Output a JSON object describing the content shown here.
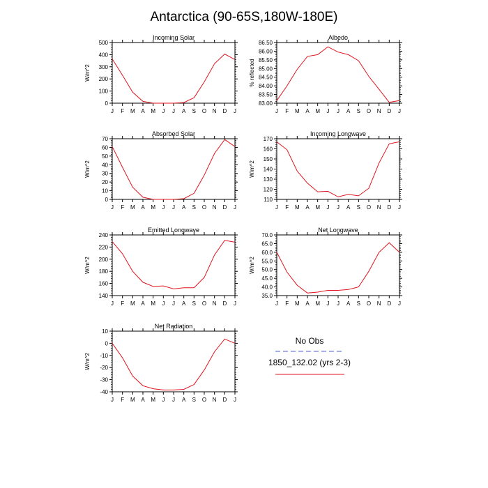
{
  "figure": {
    "title": "Antarctica (90-65S,180W-180E)"
  },
  "legend": {
    "entries": [
      {
        "label": "No Obs",
        "color": "#4a5fd6",
        "dashed": true
      },
      {
        "label": "1850_132.02 (yrs 2-3)",
        "color": "#e0141e",
        "dashed": false
      }
    ]
  },
  "chart_data": [
    {
      "type": "line",
      "title": "Incoming Solar",
      "xlabel": "",
      "ylabel": "W/m^2",
      "categories": [
        "J",
        "F",
        "M",
        "A",
        "M",
        "J",
        "J",
        "A",
        "S",
        "O",
        "N",
        "D",
        "J"
      ],
      "ylim": [
        0,
        500
      ],
      "yticks": [
        0,
        100,
        200,
        300,
        400,
        500
      ],
      "ytick_labels": [
        "0",
        "100",
        "200",
        "300",
        "400",
        "500"
      ],
      "series": [
        {
          "color": "#e0141e",
          "values": [
            365,
            230,
            90,
            15,
            0,
            0,
            0,
            5,
            45,
            175,
            325,
            405,
            360
          ]
        }
      ]
    },
    {
      "type": "line",
      "title": "Albedo",
      "xlabel": "",
      "ylabel": "% reflected",
      "categories": [
        "J",
        "F",
        "M",
        "A",
        "M",
        "J",
        "J",
        "A",
        "S",
        "O",
        "N",
        "D",
        "J"
      ],
      "ylim": [
        83.0,
        86.5
      ],
      "yticks": [
        83.0,
        83.5,
        84.0,
        84.5,
        85.0,
        85.5,
        86.0,
        86.5
      ],
      "ytick_labels": [
        "83.00",
        "83.50",
        "84.00",
        "84.50",
        "85.00",
        "85.50",
        "86.00",
        "86.50"
      ],
      "series": [
        {
          "color": "#e0141e",
          "values": [
            83.15,
            84.0,
            84.95,
            85.7,
            85.8,
            86.25,
            85.95,
            85.8,
            85.45,
            84.55,
            83.8,
            83.05,
            83.15
          ]
        }
      ]
    },
    {
      "type": "line",
      "title": "Absorbed Solar",
      "xlabel": "",
      "ylabel": "W/m^2",
      "categories": [
        "J",
        "F",
        "M",
        "A",
        "M",
        "J",
        "J",
        "A",
        "S",
        "O",
        "N",
        "D",
        "J"
      ],
      "ylim": [
        0,
        70
      ],
      "yticks": [
        0,
        10,
        20,
        30,
        40,
        50,
        60,
        70
      ],
      "ytick_labels": [
        "0",
        "10",
        "20",
        "30",
        "40",
        "50",
        "60",
        "70"
      ],
      "series": [
        {
          "color": "#e0141e",
          "values": [
            61,
            37,
            14,
            2.5,
            0,
            0,
            0,
            0.8,
            7,
            28,
            53,
            69,
            61
          ]
        }
      ]
    },
    {
      "type": "line",
      "title": "Incoming Longwave",
      "xlabel": "",
      "ylabel": "W/m^2",
      "categories": [
        "J",
        "F",
        "M",
        "A",
        "M",
        "J",
        "J",
        "A",
        "S",
        "O",
        "N",
        "D",
        "J"
      ],
      "ylim": [
        110,
        170
      ],
      "yticks": [
        110,
        120,
        130,
        140,
        150,
        160,
        170
      ],
      "ytick_labels": [
        "110",
        "120",
        "130",
        "140",
        "150",
        "160",
        "170"
      ],
      "series": [
        {
          "color": "#e0141e",
          "values": [
            167,
            159,
            138,
            126,
            117.5,
            118,
            112.5,
            115,
            113.5,
            121,
            146,
            165,
            167
          ]
        }
      ]
    },
    {
      "type": "line",
      "title": "Emitted Longwave",
      "xlabel": "",
      "ylabel": "W/m^2",
      "categories": [
        "J",
        "F",
        "M",
        "A",
        "M",
        "J",
        "J",
        "A",
        "S",
        "O",
        "N",
        "D",
        "J"
      ],
      "ylim": [
        140,
        240
      ],
      "yticks": [
        140,
        160,
        180,
        200,
        220,
        240
      ],
      "ytick_labels": [
        "140",
        "160",
        "180",
        "200",
        "220",
        "240"
      ],
      "series": [
        {
          "color": "#e0141e",
          "values": [
            229,
            209,
            180,
            162,
            155,
            156,
            151,
            153,
            153,
            170,
            207,
            231,
            228
          ]
        }
      ]
    },
    {
      "type": "line",
      "title": "Net Longwave",
      "xlabel": "",
      "ylabel": "W/m^2",
      "categories": [
        "J",
        "F",
        "M",
        "A",
        "M",
        "J",
        "J",
        "A",
        "S",
        "O",
        "N",
        "D",
        "J"
      ],
      "ylim": [
        35,
        70
      ],
      "yticks": [
        35,
        40,
        45,
        50,
        55,
        60,
        65,
        70
      ],
      "ytick_labels": [
        "35.0",
        "40.0",
        "45.0",
        "50.0",
        "55.0",
        "60.0",
        "65.0",
        "70.0"
      ],
      "series": [
        {
          "color": "#e0141e",
          "values": [
            60,
            48.5,
            41,
            36.5,
            37,
            38,
            38,
            38.5,
            40,
            49,
            60,
            65.5,
            60
          ]
        }
      ]
    },
    {
      "type": "line",
      "title": "Net Radiation",
      "xlabel": "",
      "ylabel": "W/m^2",
      "categories": [
        "J",
        "F",
        "M",
        "A",
        "M",
        "J",
        "J",
        "A",
        "S",
        "O",
        "N",
        "D",
        "J"
      ],
      "ylim": [
        -40,
        10
      ],
      "yticks": [
        -40,
        -30,
        -20,
        -10,
        0,
        10
      ],
      "ytick_labels": [
        "-40",
        "-30",
        "-20",
        "-10",
        "0",
        "10"
      ],
      "series": [
        {
          "color": "#e0141e",
          "values": [
            0,
            -12,
            -27,
            -35,
            -37.5,
            -38.5,
            -38.5,
            -38,
            -34,
            -22,
            -7,
            3.5,
            0
          ]
        }
      ]
    }
  ]
}
